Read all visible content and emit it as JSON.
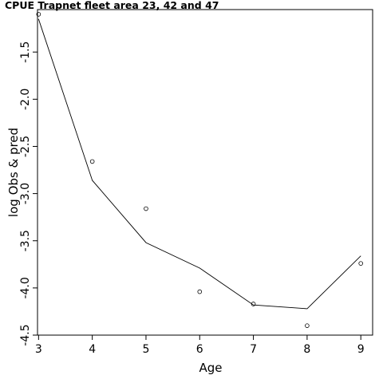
{
  "chart_data": {
    "type": "scatter",
    "title": "CPUE Trapnet fleet area 23, 42 and 47",
    "xlabel": "Age",
    "ylabel": "log Obs & pred",
    "xlim": [
      2.98,
      9.22
    ],
    "ylim": [
      -4.5,
      -1.05
    ],
    "xticks": [
      "3",
      "4",
      "5",
      "6",
      "7",
      "8",
      "9"
    ],
    "yticks": [
      "-4.5",
      "-4.0",
      "-3.5",
      "-3.0",
      "-2.5",
      "-2.0",
      "-1.5"
    ],
    "grid": false,
    "series": [
      {
        "kind": "points",
        "x": [
          3,
          4,
          5,
          6,
          7,
          8,
          9
        ],
        "y": [
          -1.1,
          -2.66,
          -3.16,
          -4.04,
          -4.17,
          -4.4,
          -3.74
        ]
      },
      {
        "kind": "line",
        "x": [
          3,
          4,
          5,
          6,
          7,
          8,
          9
        ],
        "y": [
          -1.15,
          -2.86,
          -3.52,
          -3.79,
          -4.18,
          -4.22,
          -3.66
        ]
      }
    ]
  }
}
